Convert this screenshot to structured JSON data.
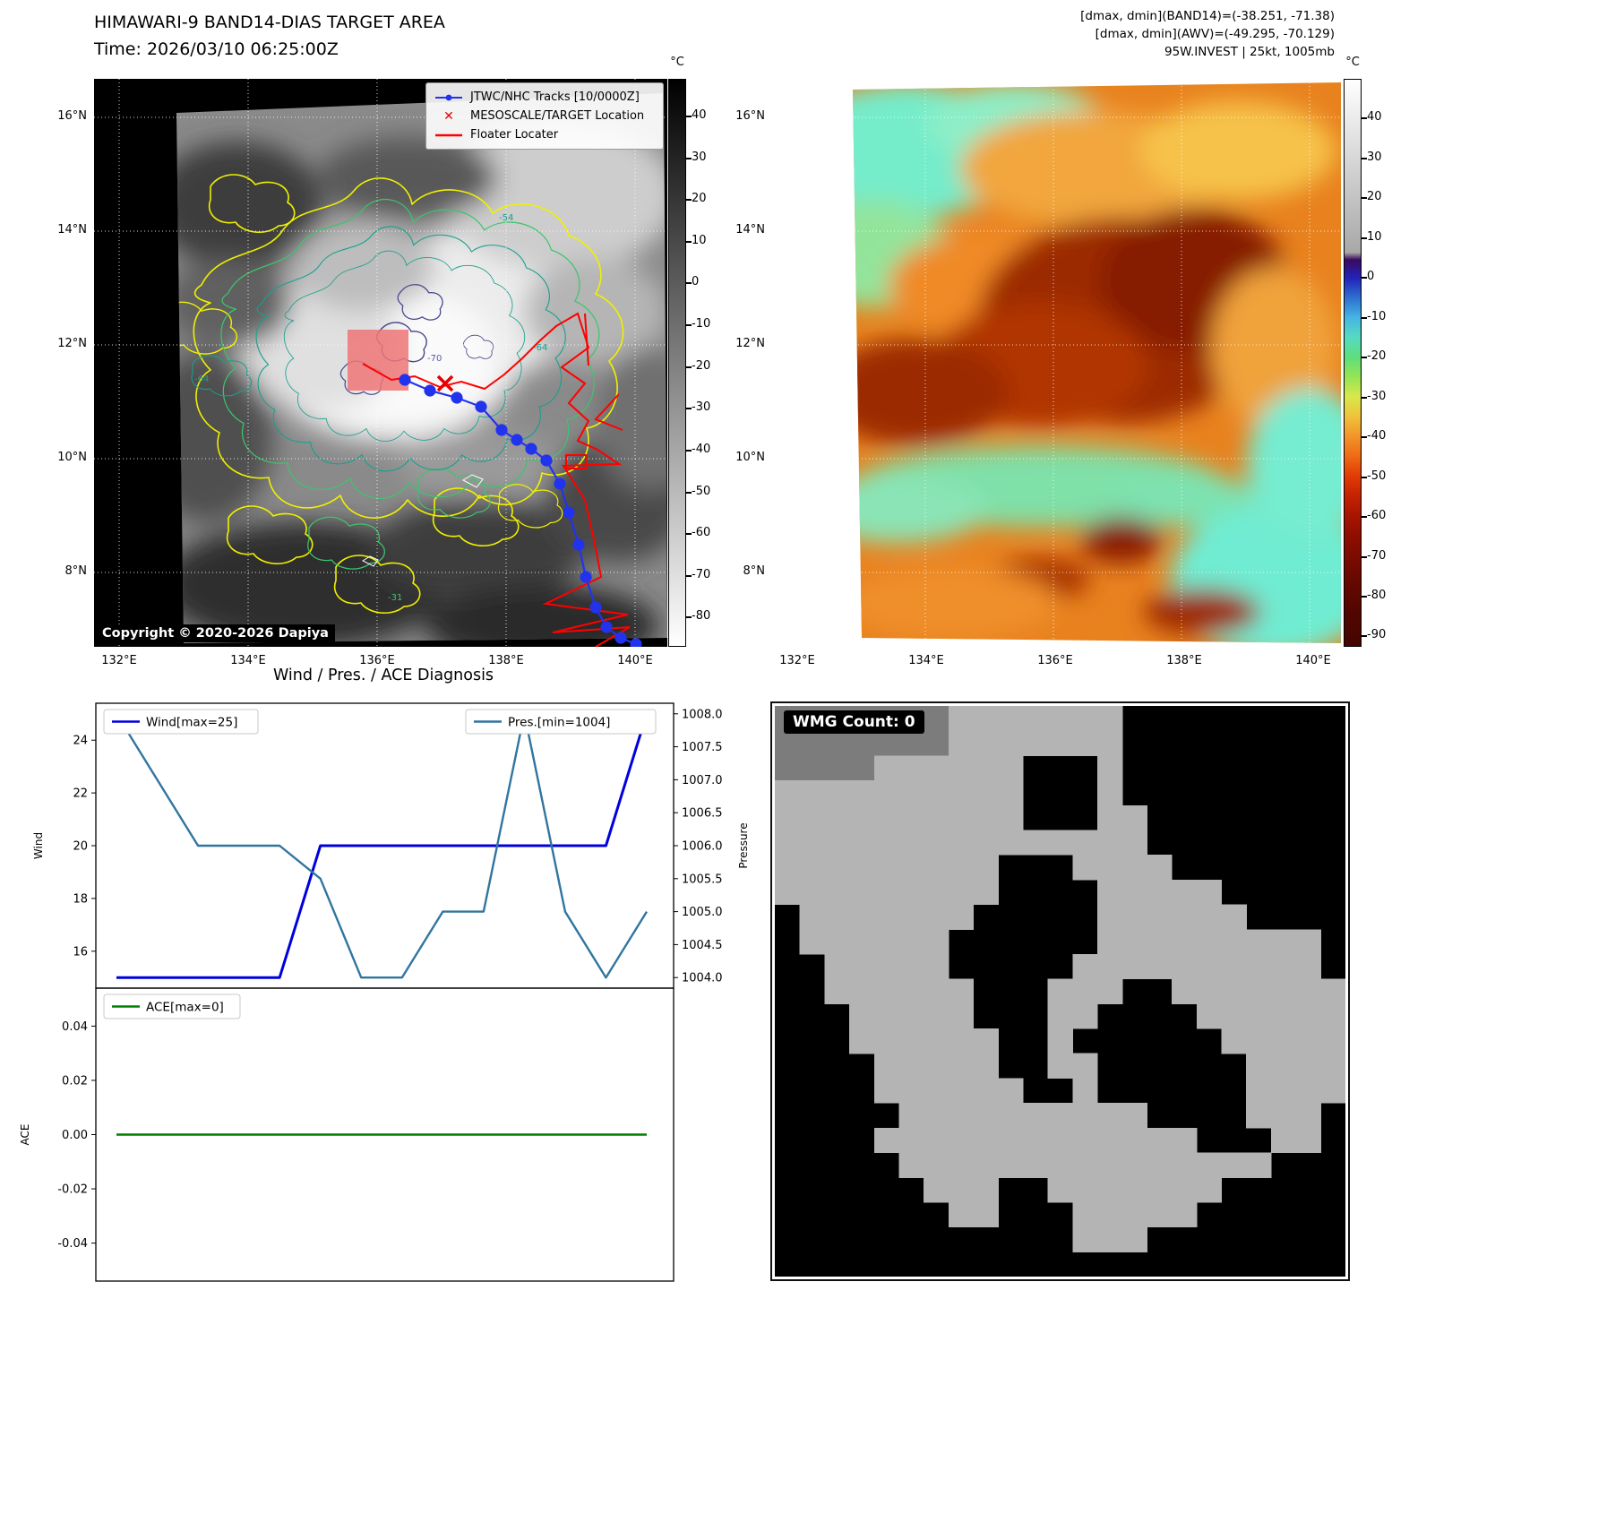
{
  "band14": {
    "title": "HIMAWARI-9 BAND14-DIAS TARGET AREA",
    "time": "Time: 2026/03/10 06:25:00Z",
    "copyright": "Copyright © 2020-2026 Dapiya",
    "legend": {
      "tracks": "JTWC/NHC Tracks [10/0000Z]",
      "target": "MESOSCALE/TARGET Location",
      "floater": "Floater Locater"
    },
    "colorbar": {
      "unit": "°C",
      "ticks": [
        40,
        30,
        20,
        10,
        0,
        -10,
        -20,
        -30,
        -40,
        -50,
        -60,
        -70,
        -80
      ]
    },
    "x_ticks": [
      "132°E",
      "134°E",
      "136°E",
      "138°E",
      "140°E"
    ],
    "y_ticks": [
      "16°N",
      "14°N",
      "12°N",
      "10°N",
      "8°N"
    ],
    "contour_labels": [
      "-54",
      "-64",
      "-70",
      "-64",
      "-31"
    ]
  },
  "awv": {
    "header": [
      "[dmax, dmin](BAND14)=(-38.251, -71.38)",
      "[dmax, dmin](AWV)=(-49.295, -70.129)",
      "95W.INVEST | 25kt, 1005mb"
    ],
    "colorbar": {
      "unit": "°C",
      "ticks": [
        40,
        30,
        20,
        10,
        0,
        -10,
        -20,
        -30,
        -40,
        -50,
        -60,
        -70,
        -80,
        -90
      ]
    },
    "x_ticks": [
      "132°E",
      "134°E",
      "136°E",
      "138°E",
      "140°E"
    ],
    "y_ticks": [
      "16°N",
      "14°N",
      "12°N",
      "10°N",
      "8°N"
    ]
  },
  "diagnosis": {
    "title": "Wind / Pres. / ACE Diagnosis"
  },
  "chart_data": [
    {
      "type": "line",
      "title": "Wind / Pres. / ACE Diagnosis",
      "x_index": [
        0,
        1,
        2,
        3,
        4,
        5,
        6,
        7,
        8,
        9,
        10,
        11,
        12,
        13
      ],
      "series": [
        {
          "name": "Wind[max=25]",
          "axis": "left",
          "color": "#0000dd",
          "values": [
            15,
            15,
            15,
            15,
            15,
            20,
            20,
            20,
            20,
            20,
            20,
            20,
            20,
            25
          ]
        },
        {
          "name": "Pres.[min=1004]",
          "axis": "right",
          "color": "#31759e",
          "values": [
            1008,
            1007,
            1006,
            1006,
            1006,
            1005.5,
            1004,
            1004,
            1005,
            1005,
            1008,
            1005,
            1004,
            1005
          ]
        }
      ],
      "left_axis": {
        "label": "Wind",
        "ticks": [
          16,
          18,
          20,
          22,
          24
        ],
        "lim": [
          15,
          25
        ]
      },
      "right_axis": {
        "label": "Pressure",
        "ticks": [
          1008,
          1007.5,
          1007,
          1006.5,
          1006,
          1005.5,
          1005,
          1004.5,
          1004
        ],
        "lim": [
          1004,
          1008
        ]
      },
      "legend_position": "top",
      "grid": false
    },
    {
      "type": "line",
      "x_index": [
        0,
        1,
        2,
        3,
        4,
        5,
        6,
        7,
        8,
        9,
        10,
        11,
        12,
        13
      ],
      "series": [
        {
          "name": "ACE[max=0]",
          "axis": "left",
          "color": "#008000",
          "values": [
            0,
            0,
            0,
            0,
            0,
            0,
            0,
            0,
            0,
            0,
            0,
            0,
            0,
            0
          ]
        }
      ],
      "left_axis": {
        "label": "ACE",
        "ticks": [
          0.04,
          0.02,
          0,
          -0.02,
          -0.04
        ],
        "lim": [
          -0.05,
          0.05
        ]
      },
      "legend_position": "top",
      "grid": false
    }
  ],
  "wmg": {
    "label": "WMG Count: 0",
    "colors": {
      "gray": "#b4b4b4",
      "dark": "#7c7c7c",
      "background": "#000000"
    },
    "mask": [
      "dddddddggggggg.........",
      "dddddddggggggg.........",
      "ddddgggggg...g.........",
      "gggggggggg...g.........",
      "gggggggggg...gg........",
      "ggggggggggggggg........",
      "ggggggggg...gggg.......",
      "ggggggggg....ggggg.....",
      ".ggggggg.....gggggg....",
      ".gggggg......ggggggggg.",
      "..ggggg.....gggggggggg.",
      "..gggggg...ggg..ggggggg",
      "...ggggg...gg....gggggg",
      "...gggggg..g......ggggg",
      "....ggggg..gg......gggg",
      "....gggggg..g......gggg",
      ".....gggggggggg....ggg.",
      "....ggggggggggggg...gg.",
      ".....ggggggggggggggg...",
      "......ggg..ggggggg.....",
      ".......gg...ggggg......",
      "............ggg........",
      "......................."
    ]
  }
}
